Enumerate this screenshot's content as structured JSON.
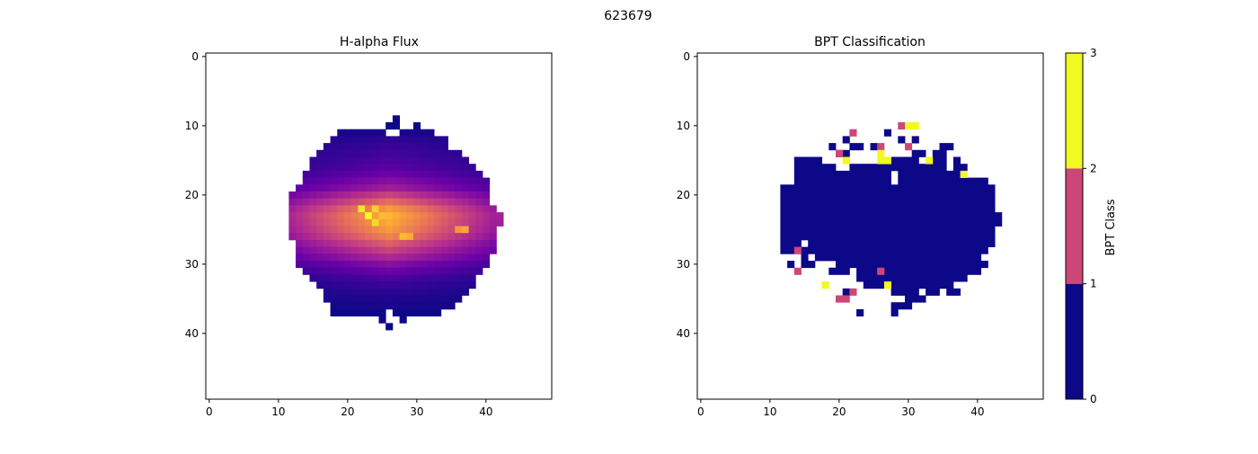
{
  "figure_title": "623679",
  "colors": {
    "bpt_class_0": "#0d0887",
    "bpt_class_1": "#cc4778",
    "bpt_class_2": "#f0f921",
    "flux_colormap": [
      "#0d0887",
      "#6a00a8",
      "#b12a90",
      "#e16462",
      "#fca636",
      "#f0f921"
    ]
  },
  "chart_data": [
    {
      "type": "heatmap",
      "title": "H-alpha Flux",
      "colormap": "plasma",
      "xlim": [
        -0.5,
        49.5
      ],
      "ylim": [
        49.5,
        -0.5
      ],
      "x_ticks": [
        0,
        10,
        20,
        30,
        40
      ],
      "y_ticks": [
        0,
        10,
        20,
        30,
        40
      ],
      "grid": false,
      "rows": [
        {
          "y": 9,
          "segments": [
            [
              27,
              28,
              0.0
            ]
          ]
        },
        {
          "y": 10,
          "segments": [
            [
              26,
              28,
              0.0
            ],
            [
              30,
              31,
              0.0
            ]
          ]
        },
        {
          "y": 11,
          "segments": [
            [
              19,
              26,
              0.02
            ],
            [
              28,
              33,
              0.02
            ]
          ]
        },
        {
          "y": 12,
          "segments": [
            [
              18,
              35,
              0.05
            ]
          ]
        },
        {
          "y": 13,
          "segments": [
            [
              17,
              35,
              0.07
            ]
          ]
        },
        {
          "y": 14,
          "segments": [
            [
              16,
              37,
              0.08
            ]
          ]
        },
        {
          "y": 15,
          "segments": [
            [
              15,
              38,
              0.1
            ]
          ]
        },
        {
          "y": 16,
          "segments": [
            [
              15,
              39,
              0.12
            ]
          ]
        },
        {
          "y": 17,
          "segments": [
            [
              14,
              40,
              0.15
            ]
          ]
        },
        {
          "y": 18,
          "segments": [
            [
              14,
              41,
              0.2
            ]
          ]
        },
        {
          "y": 19,
          "segments": [
            [
              13,
              41,
              0.25
            ]
          ]
        },
        {
          "y": 20,
          "segments": [
            [
              12,
              41,
              0.35
            ]
          ]
        },
        {
          "y": 21,
          "segments": [
            [
              12,
              41,
              0.45
            ]
          ]
        },
        {
          "y": 22,
          "segments": [
            [
              12,
              42,
              0.55
            ]
          ]
        },
        {
          "y": 23,
          "segments": [
            [
              12,
              43,
              0.6
            ]
          ]
        },
        {
          "y": 24,
          "segments": [
            [
              12,
              43,
              0.58
            ]
          ]
        },
        {
          "y": 25,
          "segments": [
            [
              12,
              42,
              0.55
            ]
          ]
        },
        {
          "y": 26,
          "segments": [
            [
              12,
              42,
              0.5
            ]
          ]
        },
        {
          "y": 27,
          "segments": [
            [
              13,
              42,
              0.42
            ]
          ]
        },
        {
          "y": 28,
          "segments": [
            [
              13,
              42,
              0.35
            ]
          ]
        },
        {
          "y": 29,
          "segments": [
            [
              13,
              41,
              0.28
            ]
          ]
        },
        {
          "y": 30,
          "segments": [
            [
              13,
              41,
              0.2
            ]
          ]
        },
        {
          "y": 31,
          "segments": [
            [
              14,
              40,
              0.15
            ]
          ]
        },
        {
          "y": 32,
          "segments": [
            [
              15,
              39,
              0.1
            ]
          ]
        },
        {
          "y": 33,
          "segments": [
            [
              16,
              39,
              0.07
            ]
          ]
        },
        {
          "y": 34,
          "segments": [
            [
              17,
              38,
              0.05
            ]
          ]
        },
        {
          "y": 35,
          "segments": [
            [
              17,
              37,
              0.03
            ]
          ]
        },
        {
          "y": 36,
          "segments": [
            [
              18,
              36,
              0.02
            ]
          ]
        },
        {
          "y": 37,
          "segments": [
            [
              18,
              26,
              0.0
            ],
            [
              27,
              34,
              0.0
            ]
          ]
        },
        {
          "y": 38,
          "segments": [
            [
              25,
              26,
              0.0
            ],
            [
              28,
              29,
              0.0
            ]
          ]
        },
        {
          "y": 39,
          "segments": [
            [
              26,
              27,
              0.0
            ]
          ]
        }
      ],
      "peaks": [
        {
          "x": 22,
          "y": 22,
          "value": 0.95
        },
        {
          "x": 23,
          "y": 23,
          "value": 1.0
        },
        {
          "x": 24,
          "y": 22,
          "value": 0.9
        },
        {
          "x": 24,
          "y": 24,
          "value": 0.92
        },
        {
          "x": 25,
          "y": 23,
          "value": 0.85
        },
        {
          "x": 28,
          "y": 26,
          "value": 0.85
        },
        {
          "x": 29,
          "y": 26,
          "value": 0.82
        },
        {
          "x": 37,
          "y": 25,
          "value": 0.8
        },
        {
          "x": 36,
          "y": 25,
          "value": 0.75
        }
      ]
    },
    {
      "type": "heatmap",
      "title": "BPT Classification",
      "xlim": [
        -0.5,
        49.5
      ],
      "ylim": [
        49.5,
        -0.5
      ],
      "x_ticks": [
        0,
        10,
        20,
        30,
        40
      ],
      "y_ticks": [
        0,
        10,
        20,
        30,
        40
      ],
      "grid": false,
      "colorbar": {
        "label": "BPT Class",
        "range": [
          0,
          3
        ],
        "ticks": [
          0,
          1,
          2,
          3
        ]
      },
      "cells_class0_rows": [
        {
          "y": 11,
          "segments": [
            [
              27,
              27
            ]
          ]
        },
        {
          "y": 12,
          "segments": [
            [
              21,
              21
            ],
            [
              29,
              29
            ],
            [
              31,
              31
            ]
          ]
        },
        {
          "y": 13,
          "segments": [
            [
              19,
              19
            ],
            [
              22,
              23
            ],
            [
              25,
              25
            ],
            [
              35,
              36
            ]
          ]
        },
        {
          "y": 14,
          "segments": [
            [
              20,
              21
            ],
            [
              31,
              32
            ],
            [
              34,
              35
            ]
          ]
        },
        {
          "y": 15,
          "segments": [
            [
              14,
              17
            ],
            [
              28,
              31
            ],
            [
              34,
              35
            ],
            [
              37,
              37
            ]
          ]
        },
        {
          "y": 16,
          "segments": [
            [
              14,
              19
            ],
            [
              22,
              35
            ],
            [
              37,
              38
            ]
          ]
        },
        {
          "y": 17,
          "segments": [
            [
              14,
              27
            ],
            [
              29,
              37
            ]
          ]
        },
        {
          "y": 18,
          "segments": [
            [
              14,
              27
            ],
            [
              29,
              41
            ]
          ]
        },
        {
          "y": 19,
          "segments": [
            [
              12,
              42
            ]
          ]
        },
        {
          "y": 20,
          "segments": [
            [
              12,
              42
            ]
          ]
        },
        {
          "y": 21,
          "segments": [
            [
              12,
              42
            ]
          ]
        },
        {
          "y": 22,
          "segments": [
            [
              12,
              42
            ]
          ]
        },
        {
          "y": 23,
          "segments": [
            [
              12,
              43
            ]
          ]
        },
        {
          "y": 24,
          "segments": [
            [
              12,
              43
            ]
          ]
        },
        {
          "y": 25,
          "segments": [
            [
              12,
              42
            ]
          ]
        },
        {
          "y": 26,
          "segments": [
            [
              12,
              42
            ]
          ]
        },
        {
          "y": 27,
          "segments": [
            [
              12,
              14
            ],
            [
              16,
              42
            ]
          ]
        },
        {
          "y": 28,
          "segments": [
            [
              12,
              41
            ]
          ]
        },
        {
          "y": 29,
          "segments": [
            [
              15,
              15
            ],
            [
              17,
              40
            ]
          ]
        },
        {
          "y": 30,
          "segments": [
            [
              13,
              13
            ],
            [
              15,
              16
            ],
            [
              20,
              41
            ]
          ]
        },
        {
          "y": 31,
          "segments": [
            [
              19,
              21
            ],
            [
              23,
              40
            ]
          ]
        },
        {
          "y": 32,
          "segments": [
            [
              23,
              38
            ]
          ]
        },
        {
          "y": 33,
          "segments": [
            [
              24,
              26
            ],
            [
              28,
              36
            ]
          ]
        },
        {
          "y": 34,
          "segments": [
            [
              21,
              21
            ],
            [
              28,
              31
            ],
            [
              33,
              34
            ],
            [
              36,
              37
            ]
          ]
        },
        {
          "y": 35,
          "segments": [
            [
              30,
              32
            ]
          ]
        },
        {
          "y": 36,
          "segments": [
            [
              28,
              30
            ]
          ]
        },
        {
          "y": 37,
          "segments": [
            [
              23,
              23
            ],
            [
              28,
              28
            ]
          ]
        }
      ],
      "cells_class1": [
        [
          29,
          10
        ],
        [
          22,
          11
        ],
        [
          20,
          14
        ],
        [
          26,
          13
        ],
        [
          30,
          13
        ],
        [
          14,
          28
        ],
        [
          14,
          31
        ],
        [
          20,
          35
        ],
        [
          21,
          35
        ],
        [
          22,
          34
        ],
        [
          26,
          31
        ]
      ],
      "cells_class2": [
        [
          30,
          10
        ],
        [
          31,
          10
        ],
        [
          21,
          15
        ],
        [
          26,
          14
        ],
        [
          26,
          15
        ],
        [
          27,
          15
        ],
        [
          33,
          15
        ],
        [
          38,
          17
        ],
        [
          18,
          33
        ],
        [
          27,
          33
        ]
      ]
    }
  ]
}
